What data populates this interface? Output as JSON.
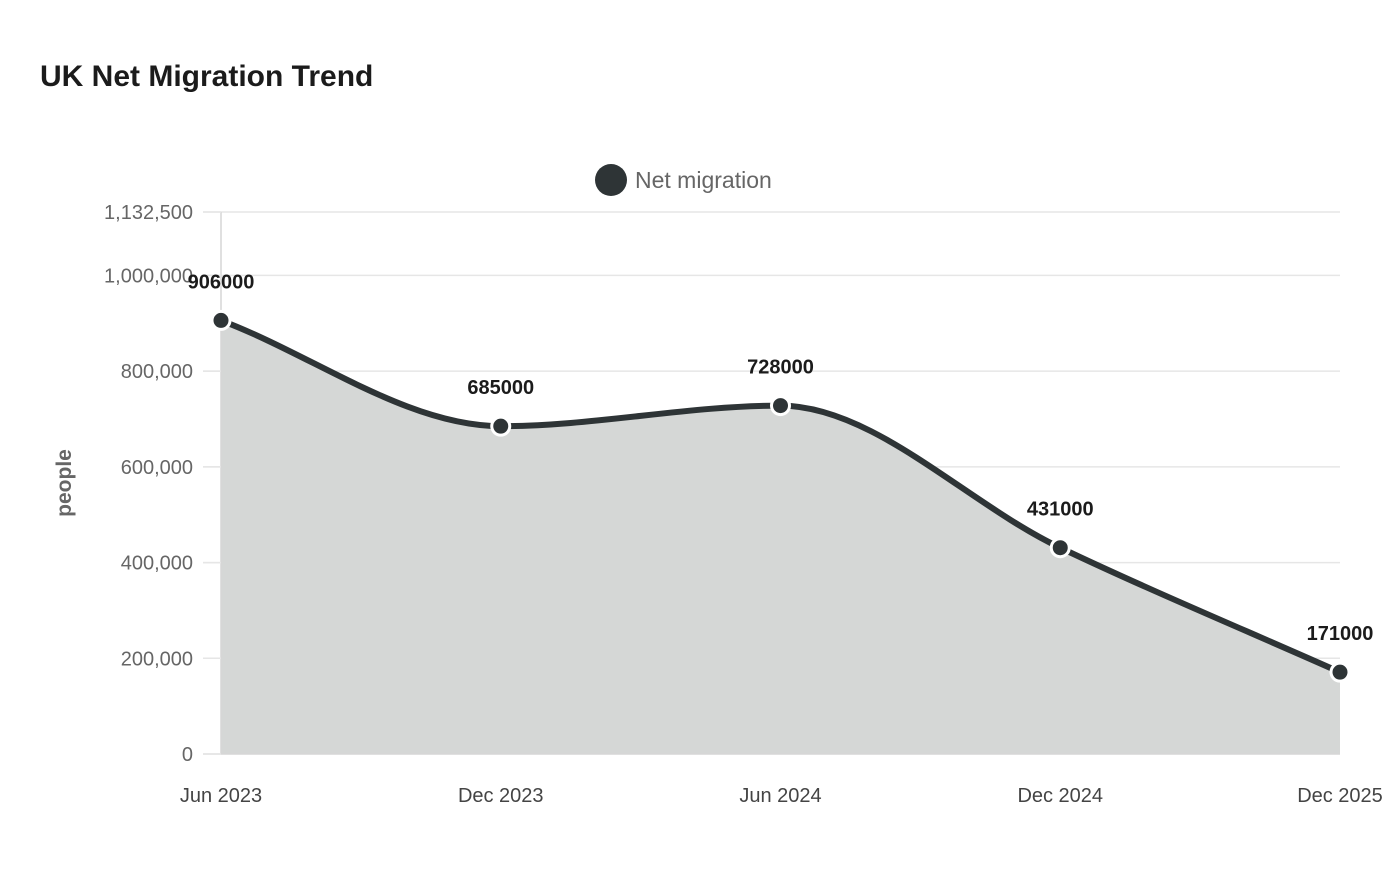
{
  "chart_data": {
    "type": "area",
    "title": "UK Net Migration Trend",
    "ylabel": "people",
    "xlabel": "",
    "categories": [
      "Jun 2023",
      "Dec 2023",
      "Jun 2024",
      "Dec 2024",
      "Dec 2025"
    ],
    "series": [
      {
        "name": "Net migration",
        "values": [
          906000,
          685000,
          728000,
          431000,
          171000
        ],
        "data_labels": [
          "906000",
          "685000",
          "728000",
          "431000",
          "171000"
        ],
        "color": "#2e3436",
        "fill_color": "#d5d7d6"
      }
    ],
    "ylim": [
      0,
      1132500
    ],
    "y_ticks": [
      0,
      200000,
      400000,
      600000,
      800000,
      1000000,
      1132500
    ],
    "y_tick_labels": [
      "0",
      "200,000",
      "400,000",
      "600,000",
      "800,000",
      "1,000,000",
      "1,132,500"
    ],
    "grid": true,
    "legend_position": "top-center",
    "curve": "smooth"
  }
}
